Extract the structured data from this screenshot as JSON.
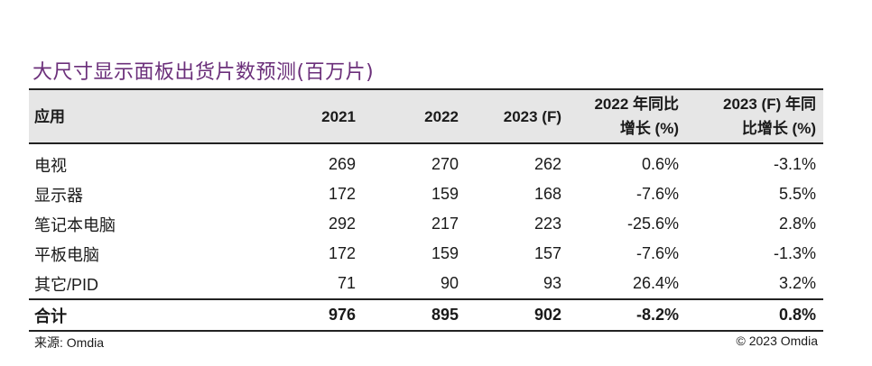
{
  "title": "大尺寸显示面板出货片数预测(百万片)",
  "table": {
    "headers": [
      "应用",
      "2021",
      "2022",
      "2023 (F)",
      "2022 年同比增长 (%)",
      "2023 (F) 年同比增长 (%)"
    ],
    "header_lines": {
      "col4": [
        "2022 年同比",
        "增长 (%)"
      ],
      "col5": [
        "2023 (F) 年同",
        "比增长 (%)"
      ]
    },
    "rows": [
      [
        "电视",
        "269",
        "270",
        "262",
        "0.6%",
        "-3.1%"
      ],
      [
        "显示器",
        "172",
        "159",
        "168",
        "-7.6%",
        "5.5%"
      ],
      [
        "笔记本电脑",
        "292",
        "217",
        "223",
        "-25.6%",
        "2.8%"
      ],
      [
        "平板电脑",
        "172",
        "159",
        "157",
        "-7.6%",
        "-1.3%"
      ],
      [
        "其它/PID",
        "71",
        "90",
        "93",
        "26.4%",
        "3.2%"
      ]
    ],
    "total": [
      "合计",
      "976",
      "895",
      "902",
      "-8.2%",
      "0.8%"
    ]
  },
  "footer": {
    "source": "来源: Omdia",
    "copyright": "© 2023 Omdia"
  },
  "colors": {
    "title": "#6b2f7a",
    "header_bg": "#e6e6e6",
    "rule": "#222222"
  }
}
